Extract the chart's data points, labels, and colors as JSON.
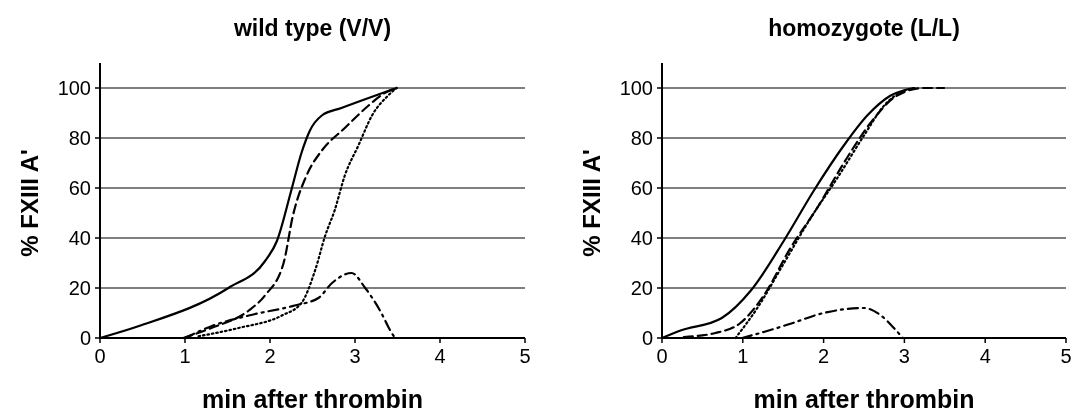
{
  "chart_data": [
    {
      "type": "line",
      "title": "wild type (V/V)",
      "xlabel": "min after thrombin",
      "ylabel": "% FXIII A'",
      "xlim": [
        0,
        5
      ],
      "xticks": [
        0,
        1,
        2,
        3,
        4,
        5
      ],
      "ylim": [
        0,
        110
      ],
      "yticks": [
        0,
        20,
        40,
        60,
        80,
        100
      ],
      "grid": "y",
      "series": [
        {
          "color": "#000000",
          "line_style": "solid",
          "x": [
            0,
            0.45,
            1.51,
            1.94,
            2.08,
            2.25,
            2.37,
            2.47,
            2.61,
            2.84,
            3.49
          ],
          "values": [
            0,
            4.7,
            20,
            30.7,
            38.7,
            59,
            74,
            83,
            89,
            92,
            100
          ]
        },
        {
          "color": "#000000",
          "line_style": "dashed",
          "x": [
            0.98,
            1.31,
            1.75,
            1.94,
            2.16,
            2.27,
            2.43,
            2.61,
            2.88,
            3.16,
            3.35,
            3.49
          ],
          "values": [
            0,
            4,
            11,
            17,
            30,
            49,
            65,
            75,
            84,
            93,
            98,
            100
          ]
        },
        {
          "color": "#000000",
          "line_style": "dotted",
          "x": [
            1.16,
            1.63,
            2.14,
            2.37,
            2.53,
            2.65,
            2.76,
            2.88,
            3.04,
            3.2,
            3.39,
            3.49
          ],
          "values": [
            0.7,
            4,
            9,
            14,
            27,
            41,
            51,
            65,
            77,
            89,
            97,
            100
          ]
        },
        {
          "color": "#000000",
          "line_style": "dashdot",
          "x": [
            1.0,
            1.31,
            1.75,
            2.29,
            2.57,
            2.73,
            2.96,
            3.12,
            3.31,
            3.41,
            3.47
          ],
          "values": [
            0,
            4.7,
            9,
            13,
            16,
            22,
            26,
            20,
            10,
            3.3,
            0
          ]
        }
      ]
    },
    {
      "type": "line",
      "title": "homozygote (L/L)",
      "xlabel": "min after thrombin",
      "ylabel": "% FXIII A'",
      "xlim": [
        0,
        5
      ],
      "xticks": [
        0,
        1,
        2,
        3,
        4,
        5
      ],
      "ylim": [
        0,
        110
      ],
      "yticks": [
        0,
        20,
        40,
        60,
        80,
        100
      ],
      "grid": "y",
      "series": [
        {
          "color": "#000000",
          "line_style": "solid",
          "x": [
            0,
            0.23,
            0.74,
            1.1,
            1.51,
            1.88,
            2.25,
            2.54,
            2.83,
            3.12
          ],
          "values": [
            0,
            3,
            8,
            19,
            39,
            59,
            77,
            89,
            97,
            100
          ]
        },
        {
          "color": "#000000",
          "line_style": "dashed",
          "x": [
            0.27,
            0.66,
            0.97,
            1.26,
            1.59,
            1.92,
            2.25,
            2.58,
            2.91,
            3.24,
            3.49
          ],
          "values": [
            0.4,
            2,
            6,
            17,
            36,
            52,
            70,
            86,
            97,
            100,
            100
          ]
        },
        {
          "color": "#000000",
          "line_style": "dotted",
          "x": [
            0.91,
            1.18,
            1.51,
            1.84,
            2.17,
            2.5,
            2.75,
            3.0,
            3.12
          ],
          "values": [
            0,
            12,
            30,
            48,
            64,
            81,
            93,
            99,
            100
          ]
        },
        {
          "color": "#000000",
          "line_style": "dashdot",
          "x": [
            0.99,
            1.26,
            1.59,
            2.0,
            2.5,
            2.71,
            2.87,
            2.98
          ],
          "values": [
            0,
            2.4,
            5.7,
            10,
            12,
            9,
            4,
            0
          ]
        }
      ]
    }
  ]
}
